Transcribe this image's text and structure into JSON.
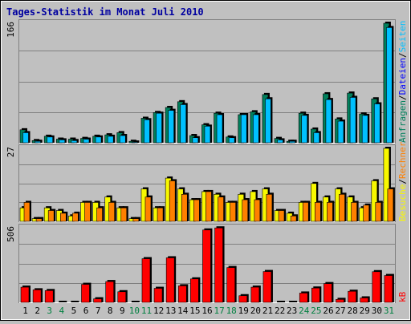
{
  "title": "Tages-Statistik im Monat Juli 2010",
  "colors": {
    "background": "#c0c0c0",
    "panel": "#c0c0c0",
    "title": "#0000a0",
    "anfragen": "#00805c",
    "dateien": "#0000ff",
    "seiten": "#00c0ff",
    "besuche": "#f8f800",
    "rechner": "#ff8000",
    "kb": "#ff0000",
    "weekend_day": "#008040",
    "weekday_day": "#000000"
  },
  "chart_data": [
    {
      "type": "bar",
      "panel": "top",
      "ymax_label": "166",
      "categories": [
        "1",
        "2",
        "3",
        "4",
        "5",
        "6",
        "7",
        "8",
        "9",
        "10",
        "11",
        "12",
        "13",
        "14",
        "15",
        "16",
        "17",
        "18",
        "19",
        "20",
        "21",
        "22",
        "23",
        "24",
        "25",
        "26",
        "27",
        "28",
        "29",
        "30",
        "31"
      ],
      "series": [
        {
          "name": "Anfragen",
          "values": [
            18,
            3,
            9,
            5,
            5,
            6,
            9,
            11,
            14,
            2,
            34,
            42,
            49,
            57,
            10,
            25,
            41,
            8,
            39,
            43,
            67,
            6,
            2,
            41,
            19,
            68,
            33,
            69,
            40,
            61,
            166
          ]
        },
        {
          "name": "Dateien",
          "values": [
            14,
            2,
            8,
            4,
            3,
            5,
            8,
            9,
            10,
            1,
            32,
            41,
            45,
            53,
            7,
            23,
            39,
            7,
            39,
            39,
            61,
            4,
            2,
            38,
            14,
            60,
            30,
            63,
            38,
            54,
            160
          ]
        }
      ],
      "ylim": [
        0,
        166
      ]
    },
    {
      "type": "bar",
      "panel": "middle",
      "ymax_label": "27",
      "categories": [
        "1",
        "2",
        "3",
        "4",
        "5",
        "6",
        "7",
        "8",
        "9",
        "10",
        "11",
        "12",
        "13",
        "14",
        "15",
        "16",
        "17",
        "18",
        "19",
        "20",
        "21",
        "22",
        "23",
        "24",
        "25",
        "26",
        "27",
        "28",
        "29",
        "30",
        "31"
      ],
      "series": [
        {
          "name": "Besuche",
          "values": [
            5,
            1,
            5,
            4,
            2,
            7,
            7,
            9,
            5,
            1,
            12,
            5,
            16,
            12,
            8,
            11,
            10,
            7,
            10,
            11,
            12,
            4,
            3,
            7,
            14,
            9,
            12,
            9,
            5,
            15,
            27
          ]
        },
        {
          "name": "Rechner",
          "values": [
            7,
            1,
            4,
            3,
            3,
            7,
            5,
            7,
            5,
            1,
            9,
            5,
            15,
            10,
            8,
            11,
            9,
            7,
            8,
            8,
            10,
            4,
            2,
            7,
            7,
            7,
            10,
            7,
            6,
            7,
            12
          ]
        }
      ],
      "ylim": [
        0,
        27
      ]
    },
    {
      "type": "bar",
      "panel": "bottom",
      "ymax_label": "506",
      "categories": [
        "1",
        "2",
        "3",
        "4",
        "5",
        "6",
        "7",
        "8",
        "9",
        "10",
        "11",
        "12",
        "13",
        "14",
        "15",
        "16",
        "17",
        "18",
        "19",
        "20",
        "21",
        "22",
        "23",
        "24",
        "25",
        "26",
        "27",
        "28",
        "29",
        "30",
        "31"
      ],
      "series": [
        {
          "name": "kB",
          "values": [
            103,
            85,
            80,
            0,
            0,
            122,
            24,
            141,
            72,
            0,
            296,
            95,
            302,
            112,
            159,
            491,
            505,
            236,
            45,
            103,
            209,
            0,
            0,
            63,
            97,
            127,
            20,
            75,
            30,
            208,
            182
          ]
        }
      ],
      "ylim": [
        0,
        506
      ]
    }
  ],
  "legend_top": [
    "Anfragen",
    "Dateien",
    "Seiten"
  ],
  "legend_middle": [
    "Besuche",
    "Rechner"
  ],
  "legend_bottom": [
    "kB"
  ],
  "legend_separator": "/",
  "weekend_days": [
    "3",
    "4",
    "10",
    "11",
    "17",
    "18",
    "24",
    "25",
    "31"
  ]
}
